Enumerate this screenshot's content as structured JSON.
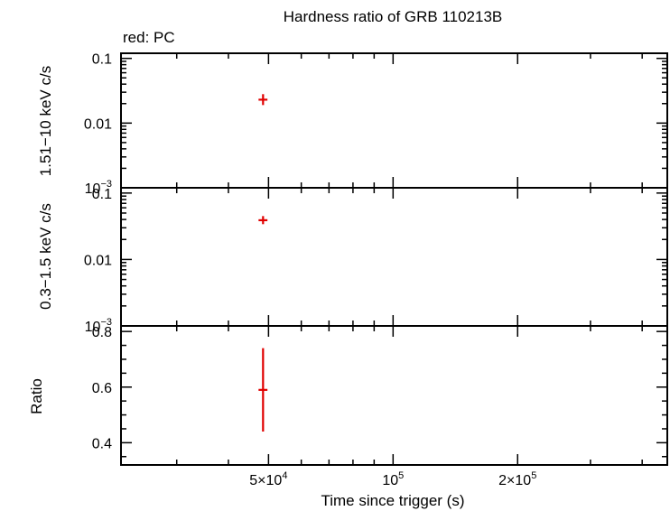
{
  "chart_data": {
    "type": "scatter",
    "title": "Hardness ratio of GRB 110213B",
    "legend_text": "red: PC",
    "xlabel": "Time since trigger (s)",
    "xscale": "log",
    "xlim": [
      22000,
      460000
    ],
    "xticks": [
      {
        "value": 50000,
        "mant": "5×10",
        "exp": "4"
      },
      {
        "value": 100000,
        "mant": "10",
        "exp": "5"
      },
      {
        "value": 200000,
        "mant": "2×10",
        "exp": "5"
      }
    ],
    "panels": [
      {
        "ylabel": "1.51−10 keV c/s",
        "yscale": "log",
        "ylim": [
          0.001,
          0.12
        ],
        "yticks": [
          {
            "value": 0.1,
            "label": "0.1",
            "exp": ""
          },
          {
            "value": 0.01,
            "label": "0.01",
            "exp": ""
          },
          {
            "value": 0.001,
            "label": "10",
            "exp": "−3"
          }
        ],
        "points": [
          {
            "x": 48500,
            "y": 0.023,
            "xerr": 1200,
            "ylow": 0.019,
            "yhigh": 0.028
          }
        ]
      },
      {
        "ylabel": "0.3−1.5 keV c/s",
        "yscale": "log",
        "ylim": [
          0.001,
          0.12
        ],
        "yticks": [
          {
            "value": 0.1,
            "label": "0.1",
            "exp": ""
          },
          {
            "value": 0.01,
            "label": "0.01",
            "exp": ""
          },
          {
            "value": 0.001,
            "label": "10",
            "exp": "−3"
          }
        ],
        "points": [
          {
            "x": 48500,
            "y": 0.039,
            "xerr": 1200,
            "ylow": 0.034,
            "yhigh": 0.045
          }
        ]
      },
      {
        "ylabel": "Ratio",
        "yscale": "linear",
        "ylim": [
          0.32,
          0.82
        ],
        "yticks": [
          {
            "value": 0.8,
            "label": "0.8",
            "exp": ""
          },
          {
            "value": 0.6,
            "label": "0.6",
            "exp": ""
          },
          {
            "value": 0.4,
            "label": "0.4",
            "exp": ""
          }
        ],
        "points": [
          {
            "x": 48500,
            "y": 0.59,
            "xerr": 1200,
            "ylow": 0.44,
            "yhigh": 0.74
          }
        ]
      }
    ],
    "series_color": "#e00000",
    "grid": false
  }
}
